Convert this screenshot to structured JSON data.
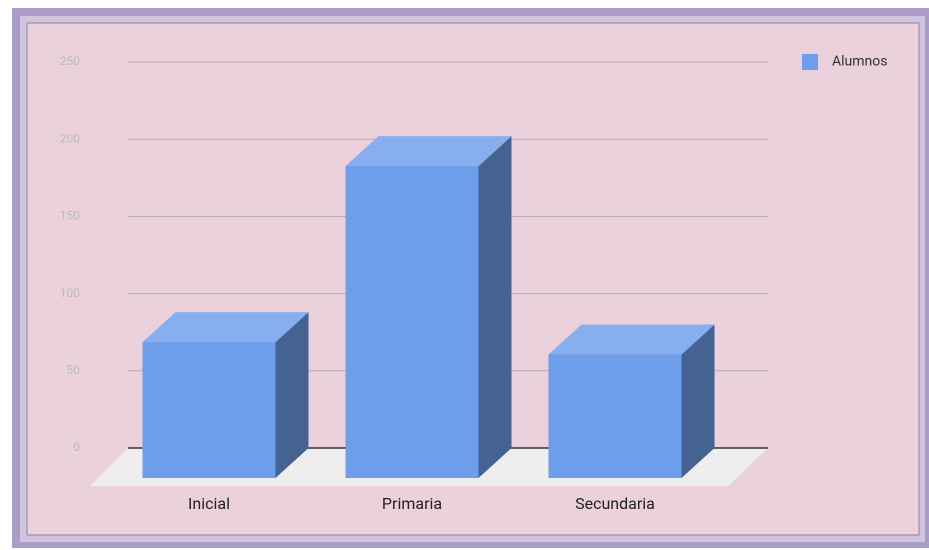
{
  "chart_data": {
    "type": "bar3d",
    "categories": [
      "Inicial",
      "Primaria",
      "Secundaria"
    ],
    "series": [
      {
        "name": "Alumnos",
        "color": "#6d9eeb",
        "values": [
          88,
          202,
          80
        ]
      }
    ],
    "ylim": [
      0,
      250
    ],
    "yticks": [
      0,
      50,
      100,
      150,
      200,
      250
    ],
    "grid": true,
    "legend": "right"
  }
}
